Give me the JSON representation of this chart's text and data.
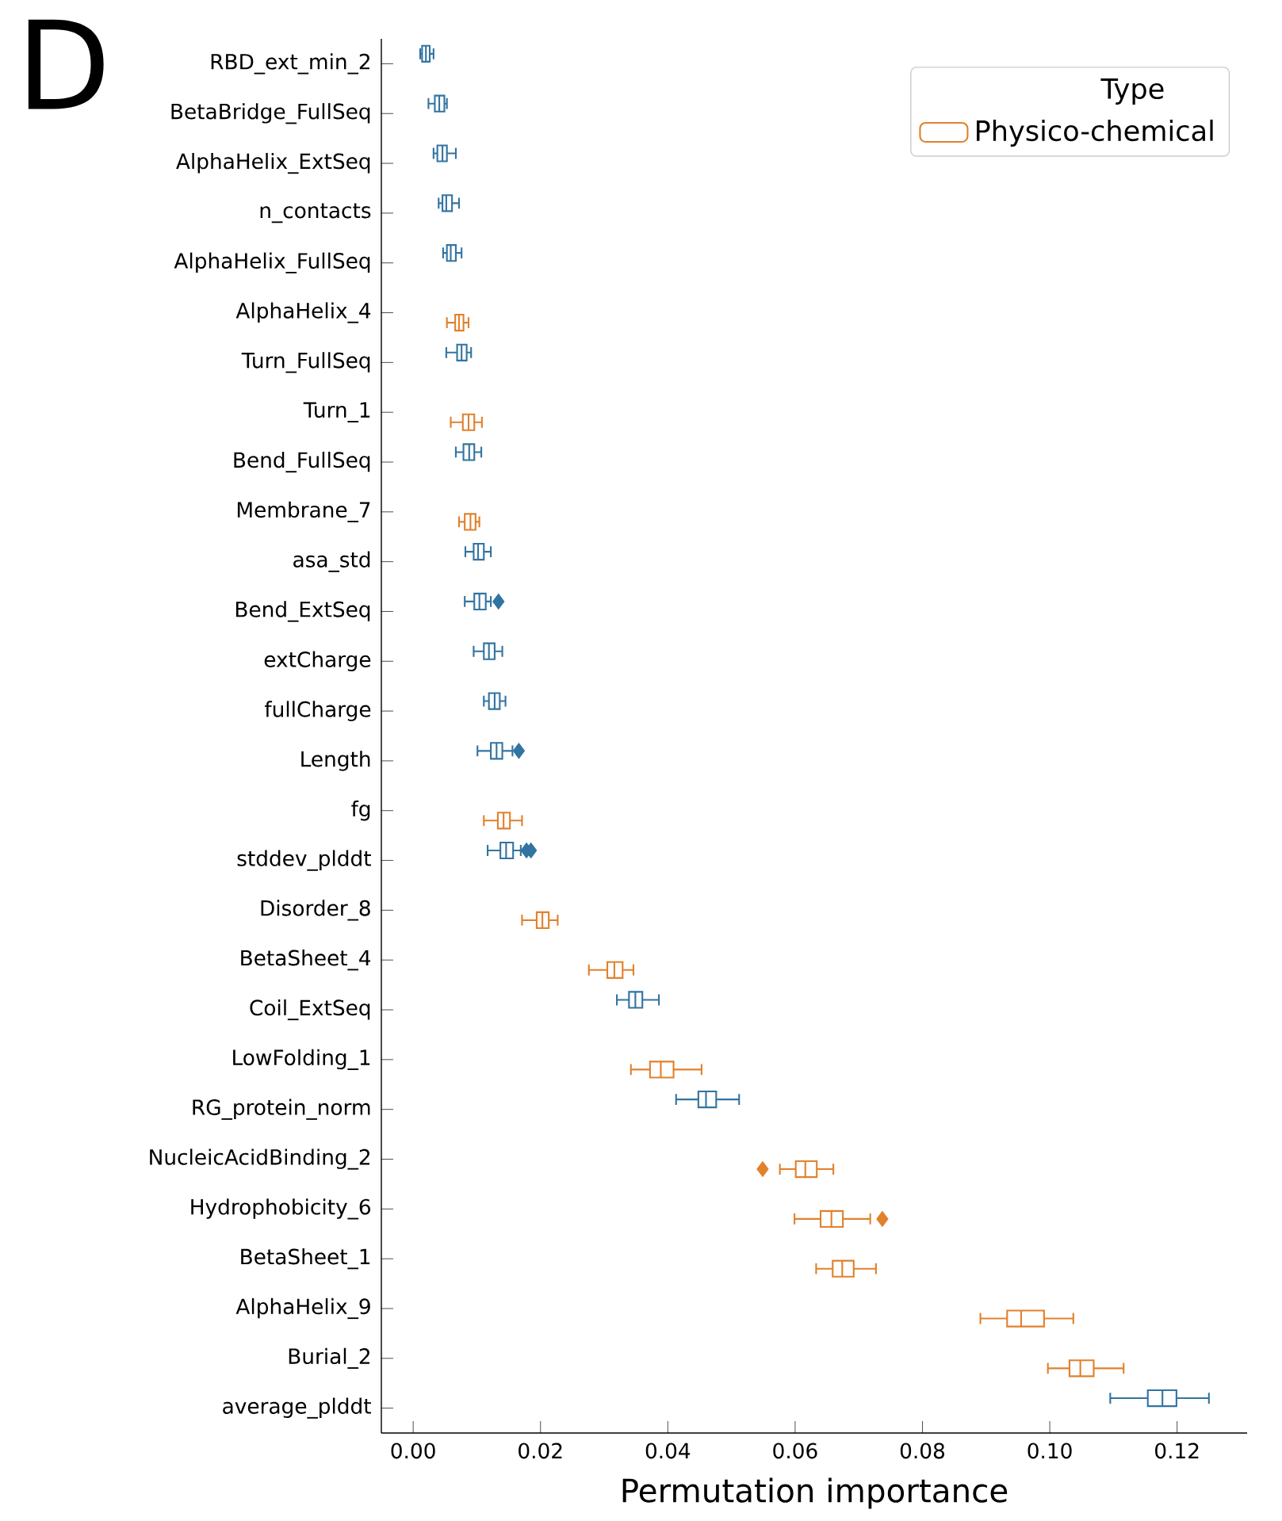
{
  "chart_data": {
    "type": "box",
    "orientation": "horizontal",
    "title": "D",
    "xlabel": "Permutation importance",
    "categories": [
      "RBD_ext_min_2",
      "BetaBridge_FullSeq",
      "AlphaHelix_ExtSeq",
      "n_contacts",
      "AlphaHelix_FullSeq",
      "AlphaHelix_4",
      "Turn_FullSeq",
      "Turn_1",
      "Bend_FullSeq",
      "Membrane_7",
      "asa_std",
      "Bend_ExtSeq",
      "extCharge",
      "fullCharge",
      "Length",
      "fg",
      "stddev_plddt",
      "Disorder_8",
      "BetaSheet_4",
      "Coil_ExtSeq",
      "LowFolding_1",
      "RG_protein_norm",
      "NucleicAcidBinding_2",
      "Hydrophobicity_6",
      "BetaSheet_1",
      "AlphaHelix_9",
      "Burial_2",
      "average_plddt"
    ],
    "xlim": [
      -0.005,
      0.131
    ],
    "xticks": [
      {
        "value": 0,
        "label": "0.00"
      },
      {
        "value": 0.02,
        "label": "0.02"
      },
      {
        "value": 0.04,
        "label": "0.04"
      },
      {
        "value": 0.06,
        "label": "0.06"
      },
      {
        "value": 0.08,
        "label": "0.08"
      },
      {
        "value": 0.1,
        "label": "0.10"
      },
      {
        "value": 0.12,
        "label": "0.12"
      }
    ],
    "legend": "top right",
    "legend_title": "Type",
    "marker": "diamond",
    "series": [
      {
        "color": "#3274a1",
        "boxes": [
          {
            "low": 0.0011,
            "q1": 0.0014,
            "median": 0.002,
            "q3": 0.0026,
            "high": 0.0032
          },
          {
            "low": 0.0024,
            "q1": 0.0034,
            "median": 0.0041,
            "q3": 0.0049,
            "high": 0.0053
          },
          {
            "low": 0.0032,
            "q1": 0.0038,
            "median": 0.0046,
            "q3": 0.0053,
            "high": 0.0067
          },
          {
            "low": 0.004,
            "q1": 0.0046,
            "median": 0.0052,
            "q3": 0.0061,
            "high": 0.0072
          },
          {
            "low": 0.0047,
            "q1": 0.0053,
            "median": 0.0059,
            "q3": 0.0067,
            "high": 0.0076
          },
          null,
          {
            "low": 0.0052,
            "q1": 0.0069,
            "median": 0.0076,
            "q3": 0.0084,
            "high": 0.0091
          },
          null,
          {
            "low": 0.0067,
            "q1": 0.0079,
            "median": 0.0088,
            "q3": 0.0096,
            "high": 0.0107
          },
          null,
          {
            "low": 0.0082,
            "q1": 0.0095,
            "median": 0.0102,
            "q3": 0.0111,
            "high": 0.0122
          },
          {
            "low": 0.0081,
            "q1": 0.0096,
            "median": 0.0104,
            "q3": 0.0114,
            "high": 0.0122,
            "outliers": [
              0.0134
            ]
          },
          {
            "low": 0.0095,
            "q1": 0.0111,
            "median": 0.0119,
            "q3": 0.0128,
            "high": 0.014
          },
          {
            "low": 0.0111,
            "q1": 0.0119,
            "median": 0.0128,
            "q3": 0.0136,
            "high": 0.0145
          },
          {
            "low": 0.0101,
            "q1": 0.0122,
            "median": 0.0131,
            "q3": 0.014,
            "high": 0.0156,
            "outliers": [
              0.0166
            ]
          },
          null,
          {
            "low": 0.0117,
            "q1": 0.0137,
            "median": 0.0146,
            "q3": 0.0157,
            "high": 0.0169,
            "outliers": [
              0.0178,
              0.0185
            ]
          },
          null,
          null,
          {
            "low": 0.032,
            "q1": 0.0339,
            "median": 0.0349,
            "q3": 0.036,
            "high": 0.0386
          },
          null,
          {
            "low": 0.0413,
            "q1": 0.0448,
            "median": 0.046,
            "q3": 0.0476,
            "high": 0.0512
          },
          null,
          null,
          null,
          null,
          null,
          {
            "low": 0.1095,
            "q1": 0.1154,
            "median": 0.1177,
            "q3": 0.1199,
            "high": 0.125
          }
        ]
      },
      {
        "name": "Physico-chemical",
        "color": "#e1812c",
        "boxes": [
          null,
          null,
          null,
          null,
          null,
          {
            "low": 0.0053,
            "q1": 0.0066,
            "median": 0.0072,
            "q3": 0.0079,
            "high": 0.0087
          },
          null,
          {
            "low": 0.0059,
            "q1": 0.0078,
            "median": 0.0087,
            "q3": 0.0096,
            "high": 0.0108
          },
          null,
          {
            "low": 0.0072,
            "q1": 0.0081,
            "median": 0.009,
            "q3": 0.0098,
            "high": 0.0104
          },
          null,
          null,
          null,
          null,
          null,
          {
            "low": 0.0111,
            "q1": 0.0133,
            "median": 0.0142,
            "q3": 0.0152,
            "high": 0.0171
          },
          null,
          {
            "low": 0.0171,
            "q1": 0.0194,
            "median": 0.0203,
            "q3": 0.0213,
            "high": 0.0227
          },
          {
            "low": 0.0276,
            "q1": 0.0305,
            "median": 0.0316,
            "q3": 0.0329,
            "high": 0.0346
          },
          null,
          {
            "low": 0.0342,
            "q1": 0.0372,
            "median": 0.0389,
            "q3": 0.0409,
            "high": 0.0453
          },
          null,
          {
            "low": 0.0576,
            "q1": 0.0601,
            "median": 0.0616,
            "q3": 0.0634,
            "high": 0.066,
            "outliers": [
              0.0549
            ]
          },
          {
            "low": 0.0599,
            "q1": 0.064,
            "median": 0.0657,
            "q3": 0.0675,
            "high": 0.0718,
            "outliers": [
              0.0737
            ]
          },
          {
            "low": 0.0633,
            "q1": 0.0659,
            "median": 0.0674,
            "q3": 0.0692,
            "high": 0.0727
          },
          {
            "low": 0.0891,
            "q1": 0.0933,
            "median": 0.0955,
            "q3": 0.0991,
            "high": 0.1037
          },
          {
            "low": 0.0997,
            "q1": 0.1031,
            "median": 0.1048,
            "q3": 0.1069,
            "high": 0.1116
          },
          null
        ]
      }
    ]
  }
}
